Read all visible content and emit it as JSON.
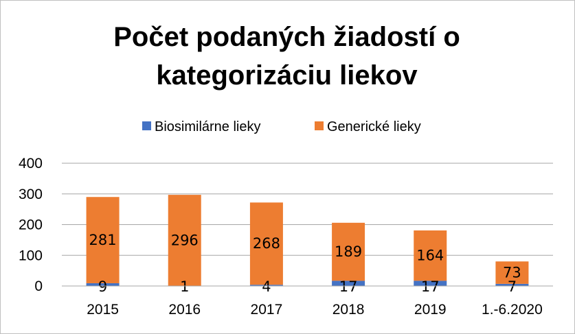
{
  "chart_data": {
    "type": "bar",
    "stacked": true,
    "title_lines": [
      "Počet podaných žiadostí o",
      "kategorizáciu liekov"
    ],
    "categories": [
      "2015",
      "2016",
      "2017",
      "2018",
      "2019",
      "1.-6.2020"
    ],
    "series": [
      {
        "name": "Biosimilárne lieky",
        "color": "#4472C4",
        "values": [
          9,
          1,
          4,
          17,
          17,
          7
        ]
      },
      {
        "name": "Generické lieky",
        "color": "#ED7D31",
        "values": [
          281,
          296,
          268,
          189,
          164,
          73
        ]
      }
    ],
    "ylim": [
      0,
      400
    ],
    "yticks": [
      "0",
      "100",
      "200",
      "300",
      "400"
    ],
    "grid": true,
    "legend_position": "top"
  }
}
